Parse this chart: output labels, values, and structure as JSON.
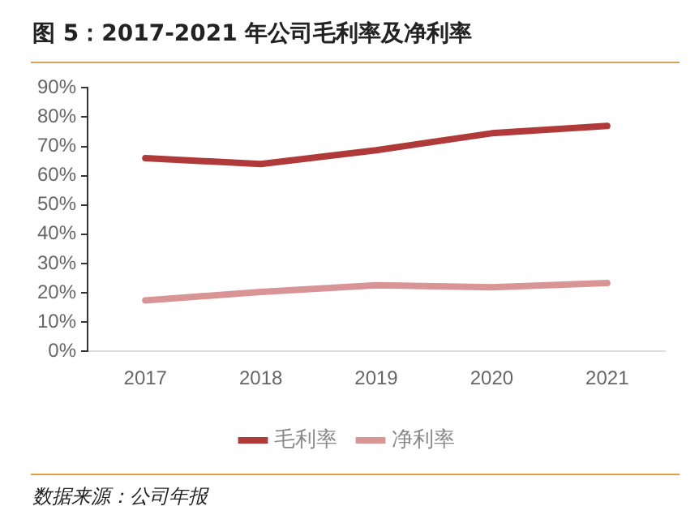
{
  "chart_data": {
    "type": "line",
    "title": "图 5：2017-2021 年公司毛利率及净利率",
    "categories": [
      "2017",
      "2018",
      "2019",
      "2020",
      "2021"
    ],
    "series": [
      {
        "name": "毛利率",
        "color": "#b03a3a",
        "values": [
          66.0,
          64.0,
          68.7,
          74.5,
          77.0
        ]
      },
      {
        "name": "净利率",
        "color": "#d99595",
        "values": [
          17.4,
          20.3,
          22.6,
          21.9,
          23.3
        ]
      }
    ],
    "ylim": [
      0,
      90
    ],
    "yticks": [
      {
        "value": 0,
        "label": "0%"
      },
      {
        "value": 10,
        "label": "10%"
      },
      {
        "value": 20,
        "label": "20%"
      },
      {
        "value": 30,
        "label": "30%"
      },
      {
        "value": 40,
        "label": "40%"
      },
      {
        "value": 50,
        "label": "50%"
      },
      {
        "value": 60,
        "label": "60%"
      },
      {
        "value": 70,
        "label": "70%"
      },
      {
        "value": 80,
        "label": "80%"
      },
      {
        "value": 90,
        "label": "90%"
      }
    ],
    "grid": false,
    "legend": "bottom",
    "marker": "none",
    "line_style": "solid",
    "annotations": [
      "数据来源：公司年报"
    ]
  }
}
